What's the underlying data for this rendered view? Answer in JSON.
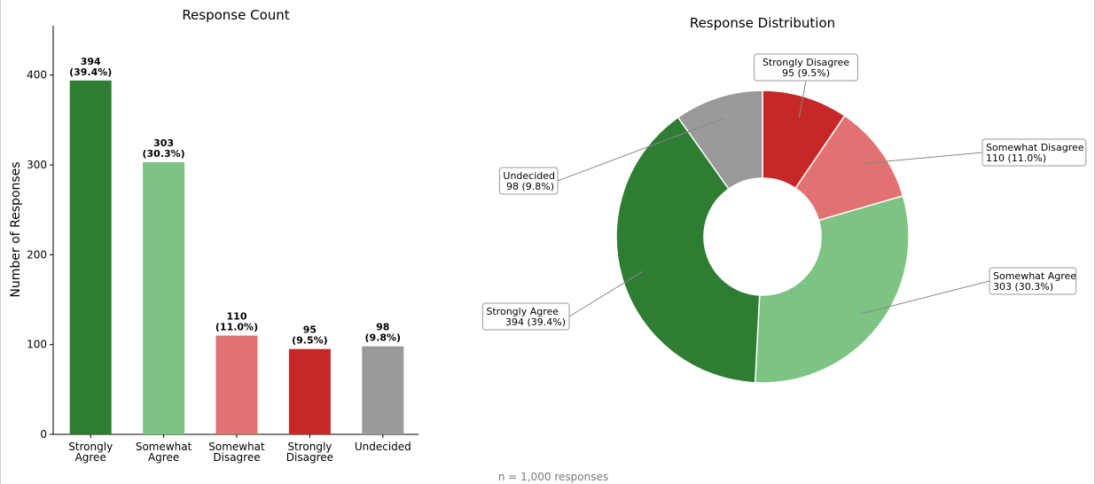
{
  "footnote": "n = 1,000 responses",
  "chart_data": [
    {
      "type": "bar",
      "title": "Response Count",
      "xlabel": "",
      "ylabel": "Number of Responses",
      "ylim": [
        0,
        455
      ],
      "yticks": [
        0,
        100,
        200,
        300,
        400
      ],
      "grid": false,
      "categories": [
        [
          "Strongly",
          "Agree"
        ],
        [
          "Somewhat",
          "Agree"
        ],
        [
          "Somewhat",
          "Disagree"
        ],
        [
          "Strongly",
          "Disagree"
        ],
        [
          "Undecided"
        ]
      ],
      "values": [
        394,
        303,
        110,
        95,
        98
      ],
      "data_labels": [
        [
          "394",
          "(39.4%)"
        ],
        [
          "303",
          "(30.3%)"
        ],
        [
          "110",
          "(11.0%)"
        ],
        [
          "95",
          "(9.5%)"
        ],
        [
          "98",
          "(9.8%)"
        ]
      ],
      "colors": [
        "#2e7d32",
        "#7dc383",
        "#e27271",
        "#c62828",
        "#9a9a9a"
      ]
    },
    {
      "type": "pie",
      "donut": true,
      "title": "Response Distribution",
      "start_angle_deg": 90,
      "direction": "clockwise",
      "slices": [
        {
          "label": "Strongly Disagree",
          "value": 95,
          "percent": 9.5,
          "color": "#c62828",
          "callout": [
            "Strongly Disagree",
            "95 (9.5%)"
          ],
          "callout_align": "center"
        },
        {
          "label": "Somewhat Disagree",
          "value": 110,
          "percent": 11.0,
          "color": "#e27271",
          "callout": [
            "Somewhat Disagree",
            "110 (11.0%)"
          ],
          "callout_align": "left"
        },
        {
          "label": "Somewhat Agree",
          "value": 303,
          "percent": 30.3,
          "color": "#7dc383",
          "callout": [
            "Somewhat Agree",
            "303 (30.3%)"
          ],
          "callout_align": "left"
        },
        {
          "label": "Strongly Agree",
          "value": 394,
          "percent": 39.4,
          "color": "#2e7d32",
          "callout": [
            "Strongly Agree",
            "394 (39.4%)"
          ],
          "callout_align": "right"
        },
        {
          "label": "Undecided",
          "value": 98,
          "percent": 9.8,
          "color": "#9a9a9a",
          "callout": [
            "Undecided",
            "98 (9.8%)"
          ],
          "callout_align": "right"
        }
      ]
    }
  ]
}
